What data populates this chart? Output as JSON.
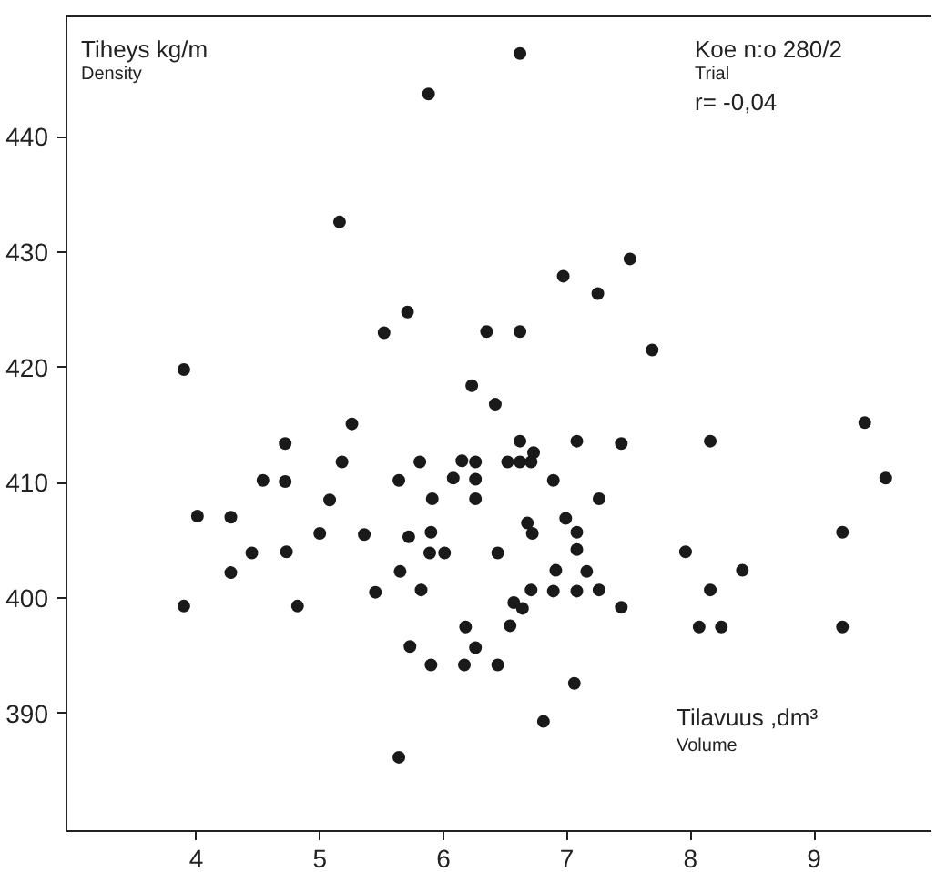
{
  "chart_data": {
    "type": "scatter",
    "ylabel": "Tiheys  kg/m",
    "xlabel": "Tilavuus ,dm³",
    "annotations": [
      "Density",
      "Volume",
      "Koe n:o 280/2",
      "Trial",
      "r= -0,04"
    ],
    "x": [
      3.9,
      5.16,
      5.88,
      5.52,
      5.71,
      6.23,
      5.26,
      6.62,
      7.51,
      6.97,
      7.25,
      6.35,
      6.62,
      7.69,
      6.42,
      9.41,
      4.01,
      3.9,
      4.28,
      4.28,
      4.45,
      4.54,
      4.72,
      4.72,
      4.73,
      4.82,
      5.0,
      5.08,
      5.18,
      5.36,
      5.45,
      5.64,
      5.65,
      5.64,
      5.72,
      5.73,
      5.81,
      5.82,
      5.91,
      5.9,
      5.89,
      5.9,
      6.01,
      6.08,
      6.15,
      6.18,
      6.17,
      6.26,
      6.26,
      6.26,
      6.26,
      6.44,
      6.44,
      6.62,
      6.52,
      6.62,
      6.71,
      6.73,
      6.89,
      7.08,
      7.44,
      8.16,
      7.26,
      6.68,
      6.72,
      6.99,
      7.08,
      7.08,
      6.91,
      7.16,
      6.71,
      6.89,
      7.08,
      7.26,
      6.57,
      6.64,
      7.44,
      6.54,
      7.06,
      6.81,
      7.96,
      8.42,
      8.16,
      8.07,
      8.25,
      9.23,
      9.23,
      9.58
    ],
    "values": [
      419.8,
      432.6,
      443.7,
      423.0,
      424.8,
      418.4,
      415.1,
      447.2,
      429.4,
      427.9,
      426.4,
      423.1,
      423.1,
      421.5,
      416.8,
      415.2,
      407.1,
      399.3,
      407.0,
      402.2,
      403.9,
      410.2,
      413.4,
      410.1,
      404.0,
      399.3,
      405.6,
      408.5,
      411.8,
      405.5,
      400.5,
      410.2,
      402.3,
      386.2,
      405.3,
      395.8,
      411.8,
      400.7,
      408.6,
      405.7,
      403.9,
      394.2,
      403.9,
      410.4,
      411.9,
      397.5,
      394.2,
      411.8,
      410.3,
      408.6,
      395.7,
      403.9,
      394.2,
      413.6,
      411.8,
      411.8,
      411.8,
      412.6,
      410.2,
      413.6,
      413.4,
      413.6,
      408.6,
      406.5,
      405.6,
      406.9,
      405.7,
      404.2,
      402.4,
      402.3,
      400.7,
      400.6,
      400.6,
      400.7,
      399.6,
      399.1,
      399.2,
      397.6,
      392.6,
      389.3,
      404.0,
      402.4,
      400.7,
      397.5,
      397.5,
      405.7,
      397.5,
      410.4
    ],
    "color": "#1a1a1a",
    "marker": "circle",
    "xlim": [
      2.95,
      9.95
    ],
    "ylim": [
      379.8,
      450.5
    ],
    "xticks": [
      4,
      5,
      6,
      7,
      8,
      9
    ],
    "yticks": [
      390,
      400,
      410,
      420,
      430,
      440
    ],
    "grid": false
  }
}
